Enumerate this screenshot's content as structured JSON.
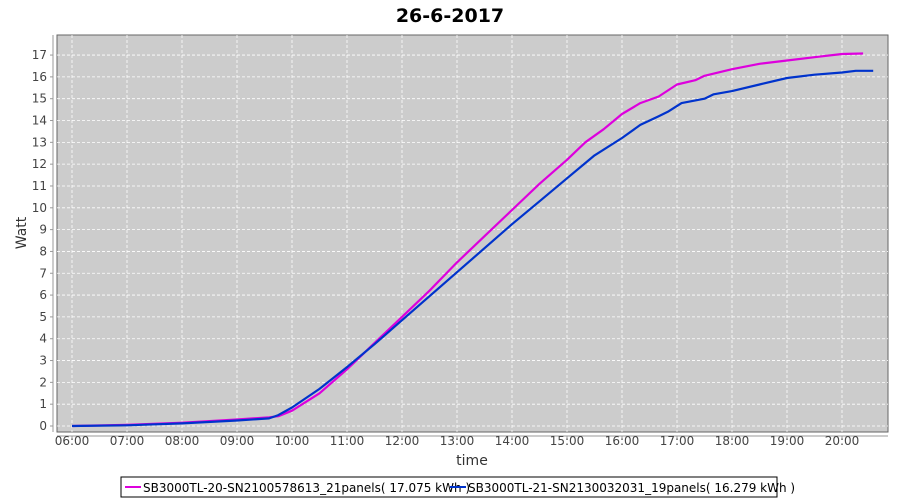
{
  "chart_data": {
    "type": "line",
    "title": "26-6-2017",
    "xlabel": "time",
    "ylabel": "Watt",
    "xlim": [
      "05:45",
      "21:00"
    ],
    "ylim": [
      0,
      17.9
    ],
    "x_ticks": [
      "06:00",
      "07:00",
      "08:00",
      "09:00",
      "10:00",
      "11:00",
      "12:00",
      "13:00",
      "14:00",
      "15:00",
      "16:00",
      "17:00",
      "18:00",
      "19:00",
      "20:00"
    ],
    "y_ticks": [
      0,
      1,
      2,
      3,
      4,
      5,
      6,
      7,
      8,
      9,
      10,
      11,
      12,
      13,
      14,
      15,
      16,
      17
    ],
    "grid": true,
    "legend_position": "bottom",
    "background": "#cccccc",
    "series": [
      {
        "name": "SB3000TL-20-SN2100578613_21panels( 17.075 kWh )",
        "color": "#dd00dd",
        "points": [
          [
            "06:00",
            0
          ],
          [
            "07:00",
            0.05
          ],
          [
            "08:00",
            0.15
          ],
          [
            "09:00",
            0.3
          ],
          [
            "09:35",
            0.4
          ],
          [
            "09:45",
            0.45
          ],
          [
            "10:00",
            0.7
          ],
          [
            "10:30",
            1.5
          ],
          [
            "11:00",
            2.6
          ],
          [
            "11:30",
            3.8
          ],
          [
            "12:00",
            5.0
          ],
          [
            "12:30",
            6.2
          ],
          [
            "13:00",
            7.5
          ],
          [
            "13:30",
            8.7
          ],
          [
            "14:00",
            9.9
          ],
          [
            "14:30",
            11.1
          ],
          [
            "15:00",
            12.2
          ],
          [
            "15:20",
            13.0
          ],
          [
            "15:40",
            13.6
          ],
          [
            "16:00",
            14.3
          ],
          [
            "16:20",
            14.8
          ],
          [
            "16:40",
            15.1
          ],
          [
            "17:00",
            15.65
          ],
          [
            "17:20",
            15.85
          ],
          [
            "17:30",
            16.05
          ],
          [
            "18:00",
            16.35
          ],
          [
            "18:30",
            16.6
          ],
          [
            "19:00",
            16.75
          ],
          [
            "19:30",
            16.9
          ],
          [
            "20:00",
            17.05
          ],
          [
            "20:23",
            17.07
          ]
        ]
      },
      {
        "name": "SB3000TL-21-SN2130032031_19panels( 16.279 kWh )",
        "color": "#0033cc",
        "points": [
          [
            "06:00",
            0
          ],
          [
            "07:00",
            0.03
          ],
          [
            "08:00",
            0.12
          ],
          [
            "09:00",
            0.25
          ],
          [
            "09:35",
            0.35
          ],
          [
            "09:45",
            0.5
          ],
          [
            "10:00",
            0.85
          ],
          [
            "10:30",
            1.7
          ],
          [
            "11:00",
            2.7
          ],
          [
            "11:30",
            3.75
          ],
          [
            "12:00",
            4.85
          ],
          [
            "12:30",
            5.95
          ],
          [
            "13:00",
            7.05
          ],
          [
            "13:30",
            8.15
          ],
          [
            "14:00",
            9.25
          ],
          [
            "14:30",
            10.3
          ],
          [
            "15:00",
            11.35
          ],
          [
            "15:30",
            12.4
          ],
          [
            "16:00",
            13.2
          ],
          [
            "16:20",
            13.8
          ],
          [
            "16:40",
            14.2
          ],
          [
            "16:50",
            14.4
          ],
          [
            "17:05",
            14.8
          ],
          [
            "17:30",
            15.0
          ],
          [
            "17:40",
            15.2
          ],
          [
            "18:00",
            15.35
          ],
          [
            "18:30",
            15.65
          ],
          [
            "19:00",
            15.95
          ],
          [
            "19:30",
            16.1
          ],
          [
            "20:00",
            16.2
          ],
          [
            "20:15",
            16.28
          ],
          [
            "20:34",
            16.28
          ]
        ]
      }
    ]
  }
}
